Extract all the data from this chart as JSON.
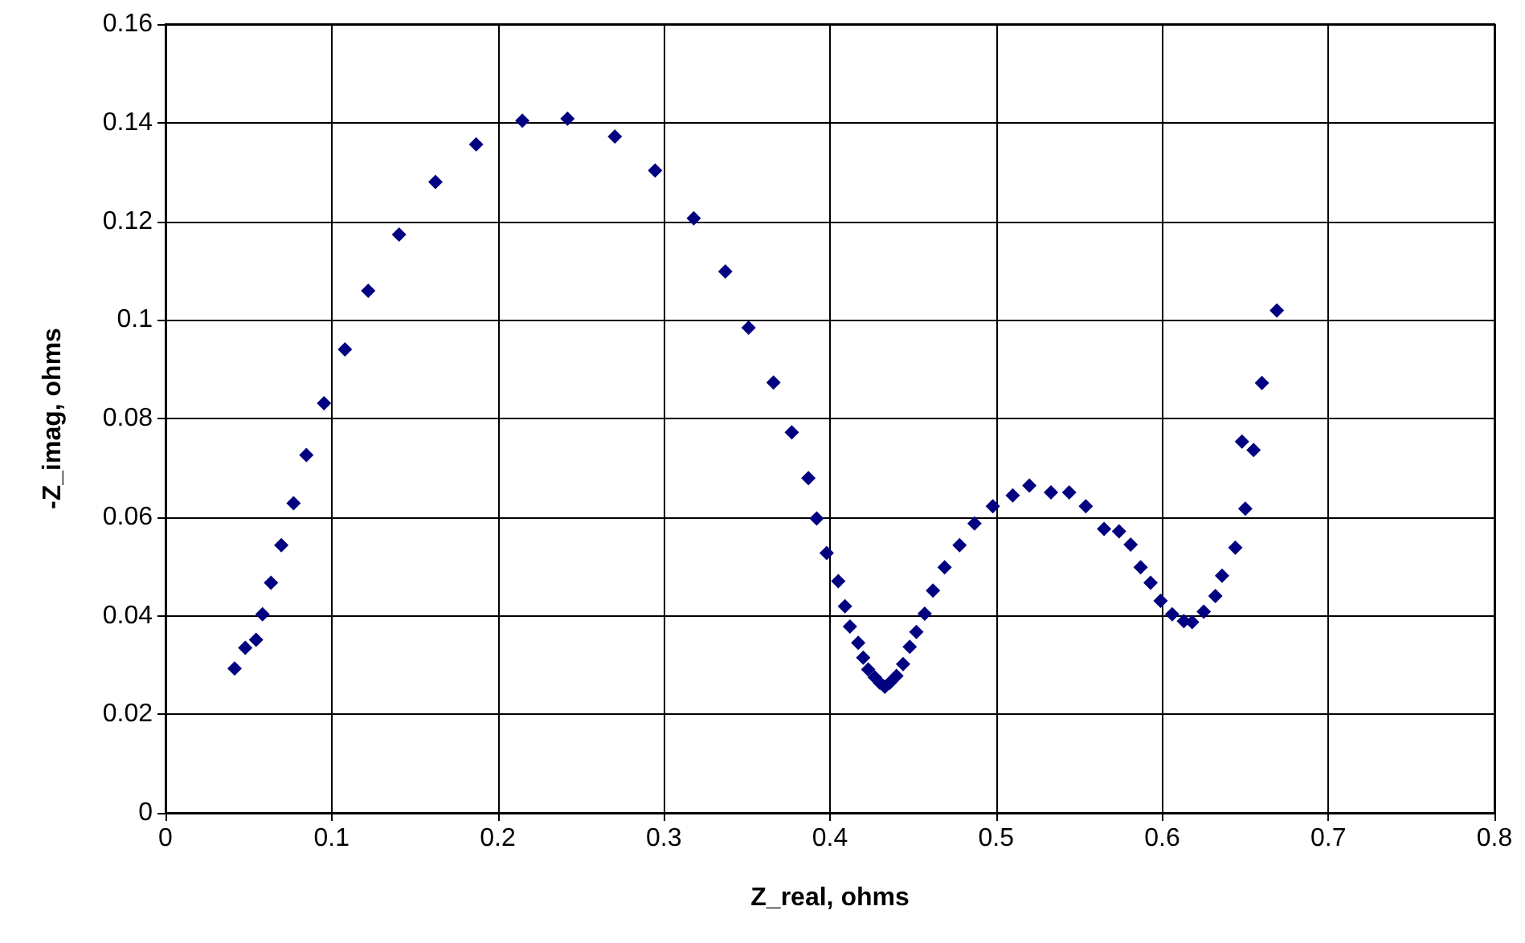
{
  "chart_data": {
    "type": "scatter",
    "xlabel": "Z_real, ohms",
    "ylabel": "-Z_imag, ohms",
    "x": [
      0.0416,
      0.048,
      0.0545,
      0.0584,
      0.0635,
      0.0697,
      0.0771,
      0.0848,
      0.0954,
      0.108,
      0.122,
      0.1406,
      0.1625,
      0.187,
      0.2148,
      0.242,
      0.2705,
      0.2947,
      0.318,
      0.337,
      0.351,
      0.366,
      0.377,
      0.387,
      0.392,
      0.398,
      0.405,
      0.409,
      0.412,
      0.417,
      0.42,
      0.423,
      0.427,
      0.43,
      0.433,
      0.436,
      0.44,
      0.444,
      0.448,
      0.452,
      0.457,
      0.462,
      0.469,
      0.478,
      0.487,
      0.498,
      0.51,
      0.52,
      0.533,
      0.544,
      0.554,
      0.565,
      0.574,
      0.581,
      0.587,
      0.593,
      0.599,
      0.606,
      0.613,
      0.618,
      0.625,
      0.632,
      0.636,
      0.644,
      0.648,
      0.65,
      0.655,
      0.66,
      0.669
    ],
    "series": [
      {
        "color": "#000080",
        "values": [
          0.0293,
          0.0335,
          0.0351,
          0.0403,
          0.0467,
          0.0543,
          0.0628,
          0.0726,
          0.0831,
          0.094,
          0.1059,
          0.1173,
          0.128,
          0.1356,
          0.1404,
          0.1408,
          0.1372,
          0.1303,
          0.1206,
          0.1098,
          0.0984,
          0.0873,
          0.0772,
          0.0679,
          0.0597,
          0.0527,
          0.047,
          0.0419,
          0.0378,
          0.0345,
          0.0315,
          0.0291,
          0.0275,
          0.0264,
          0.0256,
          0.0264,
          0.0278,
          0.0302,
          0.0337,
          0.0367,
          0.0404,
          0.0451,
          0.0498,
          0.0543,
          0.0587,
          0.0622,
          0.0644,
          0.0664,
          0.065,
          0.065,
          0.0622,
          0.0576,
          0.0571,
          0.0544,
          0.0498,
          0.0467,
          0.043,
          0.0403,
          0.0389,
          0.0387,
          0.0408,
          0.044,
          0.0481,
          0.0538,
          0.0753,
          0.0617,
          0.0736,
          0.0872,
          0.1019
        ]
      }
    ],
    "xlim": [
      0,
      0.8
    ],
    "xticks": [
      0,
      0.1,
      0.2,
      0.3,
      0.4,
      0.5,
      0.6,
      0.7,
      0.8
    ],
    "ylim": [
      0,
      0.16
    ],
    "yticks": [
      0,
      0.02,
      0.04,
      0.06,
      0.08,
      0.1,
      0.12,
      0.14,
      0.16
    ],
    "grid": true,
    "marker": "diamond"
  }
}
